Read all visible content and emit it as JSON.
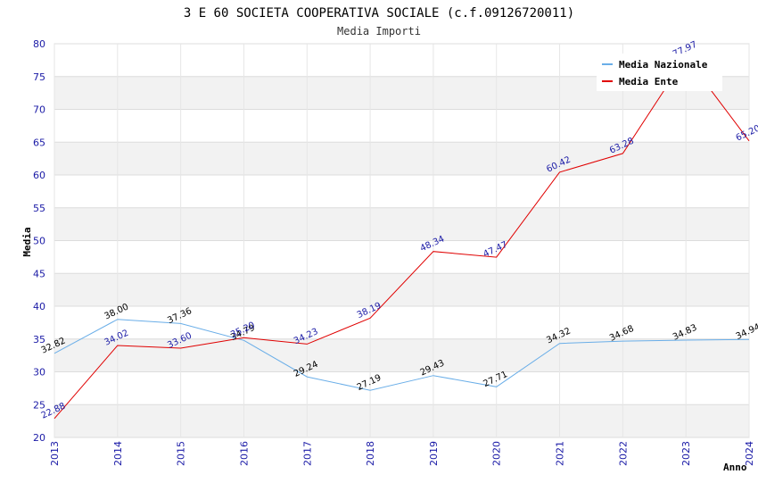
{
  "chart_data": {
    "type": "line",
    "title": "3 E 60 SOCIETA COOPERATIVA SOCIALE (c.f.09126720011)",
    "subtitle": "Media Importi",
    "xlabel": "Anno",
    "ylabel": "Media",
    "ylim": [
      20,
      80
    ],
    "yticks": [
      20,
      25,
      30,
      35,
      40,
      45,
      50,
      55,
      60,
      65,
      70,
      75,
      80
    ],
    "ytick_labels": [
      "20",
      "25",
      "30",
      "35",
      "40",
      "45",
      "50",
      "55",
      "60",
      "65",
      "70",
      "75",
      "80"
    ],
    "categories": [
      "2013",
      "2014",
      "2015",
      "2016",
      "2017",
      "2018",
      "2019",
      "2020",
      "2021",
      "2022",
      "2023",
      "2024"
    ],
    "grid": true,
    "legend_position": "top-right",
    "series": [
      {
        "name": "Media Nazionale",
        "color": "#6aaee8",
        "values": [
          32.82,
          38.0,
          37.36,
          34.79,
          29.24,
          27.19,
          29.43,
          27.71,
          34.32,
          34.68,
          34.83,
          34.94
        ],
        "labels": [
          "32.82",
          "38.00",
          "37.36",
          "34.79",
          "29.24",
          "27.19",
          "29.43",
          "27.71",
          "34.32",
          "34.68",
          "34.83",
          "34.94"
        ]
      },
      {
        "name": "Media Ente",
        "color": "#e00000",
        "values": [
          22.88,
          34.02,
          33.6,
          35.2,
          34.23,
          38.19,
          48.34,
          47.47,
          60.42,
          63.28,
          77.97,
          65.2
        ],
        "labels": [
          "22.88",
          "34.02",
          "33.60",
          "35.20",
          "34.23",
          "38.19",
          "48.34",
          "47.47",
          "60.42",
          "63.28",
          "77.97",
          "65.20"
        ]
      }
    ]
  }
}
